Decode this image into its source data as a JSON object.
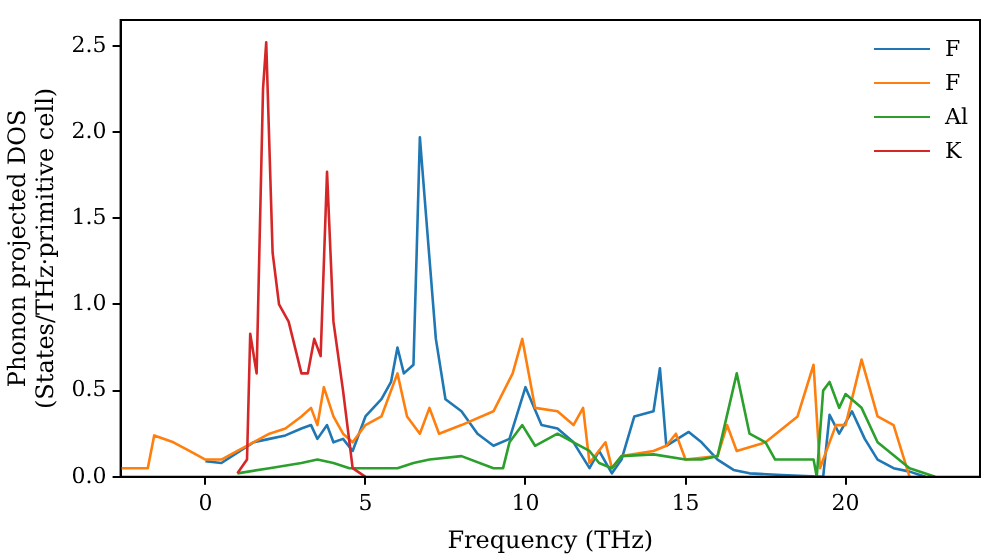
{
  "chart_data": {
    "type": "line",
    "xlabel": "Frequency (THz)",
    "ylabel": "Phonon projected DOS\n(States/THz·primitive cell)",
    "xlim": [
      -2.65,
      24.2
    ],
    "ylim": [
      0,
      2.65
    ],
    "xticks": [
      0,
      5,
      10,
      15,
      20
    ],
    "yticks": [
      {
        "value": 0,
        "label": "0.0"
      },
      {
        "value": 0.5,
        "label": "0.5"
      },
      {
        "value": 1,
        "label": "1.0"
      },
      {
        "value": 1.5,
        "label": "1.5"
      },
      {
        "value": 2,
        "label": "2.0"
      },
      {
        "value": 2.5,
        "label": "2.5"
      }
    ],
    "grid": false,
    "legend": "top right",
    "marker": "none",
    "line_style": "solid",
    "series": [
      {
        "name": "F",
        "color": "#1f77b4",
        "x": [
          0,
          0.5,
          1.0,
          1.5,
          2.0,
          2.5,
          3.0,
          3.3,
          3.5,
          3.8,
          4.0,
          4.3,
          4.6,
          5.0,
          5.5,
          5.8,
          6.0,
          6.2,
          6.5,
          6.6,
          6.7,
          6.9,
          7.2,
          7.5,
          8,
          8.5,
          9,
          9.5,
          10,
          10.5,
          11,
          11.5,
          12,
          12.3,
          12.7,
          13,
          13.4,
          14,
          14.2,
          14.4,
          15.1,
          15.5,
          16,
          16.5,
          17,
          18,
          19.3,
          19.5,
          19.8,
          20.2,
          20.6,
          21.0,
          21.5,
          22,
          22.5
        ],
        "values": [
          0.09,
          0.08,
          0.14,
          0.2,
          0.22,
          0.24,
          0.28,
          0.3,
          0.22,
          0.3,
          0.2,
          0.22,
          0.15,
          0.35,
          0.45,
          0.55,
          0.75,
          0.6,
          0.65,
          1.3,
          1.97,
          1.5,
          0.8,
          0.45,
          0.38,
          0.25,
          0.18,
          0.22,
          0.52,
          0.3,
          0.28,
          0.2,
          0.05,
          0.15,
          0.02,
          0.1,
          0.35,
          0.38,
          0.63,
          0.18,
          0.26,
          0.2,
          0.1,
          0.04,
          0.02,
          0.01,
          0.0,
          0.36,
          0.25,
          0.38,
          0.22,
          0.1,
          0.05,
          0.03,
          0.0
        ]
      },
      {
        "name": "F",
        "color": "#ff7f0e",
        "x": [
          -2.65,
          -1.8,
          -1.6,
          -1.0,
          -0.5,
          0,
          0.5,
          1,
          1.5,
          2,
          2.5,
          3,
          3.3,
          3.5,
          3.7,
          4,
          4.3,
          4.6,
          5,
          5.5,
          6,
          6.3,
          6.7,
          7,
          7.3,
          8,
          9,
          9.6,
          9.9,
          10.3,
          11,
          11.5,
          11.8,
          12,
          12.5,
          12.7,
          13,
          14,
          14.4,
          14.7,
          15,
          16,
          16.3,
          16.6,
          17.5,
          18.5,
          19.0,
          19.2,
          19.7,
          20.0,
          20.5,
          21,
          21.5,
          22
        ],
        "values": [
          0.05,
          0.05,
          0.24,
          0.2,
          0.15,
          0.1,
          0.1,
          0.15,
          0.2,
          0.25,
          0.28,
          0.35,
          0.4,
          0.3,
          0.52,
          0.35,
          0.25,
          0.2,
          0.3,
          0.35,
          0.6,
          0.35,
          0.25,
          0.4,
          0.25,
          0.3,
          0.38,
          0.6,
          0.8,
          0.4,
          0.38,
          0.3,
          0.4,
          0.08,
          0.2,
          0.05,
          0.12,
          0.15,
          0.18,
          0.25,
          0.1,
          0.12,
          0.3,
          0.15,
          0.2,
          0.35,
          0.65,
          0.05,
          0.3,
          0.3,
          0.68,
          0.35,
          0.3,
          0.0
        ]
      },
      {
        "name": "Al",
        "color": "#2ca02c",
        "x": [
          1,
          2,
          3,
          3.5,
          4,
          4.5,
          5,
          6,
          6.5,
          7,
          8,
          9,
          9.3,
          9.5,
          9.9,
          10.3,
          11,
          11.5,
          12,
          12.3,
          12.7,
          13,
          14,
          15,
          15.5,
          16,
          16.6,
          17,
          17.5,
          17.8,
          19.0,
          19.1,
          19.3,
          19.5,
          19.8,
          20,
          20.5,
          21,
          22,
          22.8
        ],
        "values": [
          0.02,
          0.05,
          0.08,
          0.1,
          0.08,
          0.05,
          0.05,
          0.05,
          0.08,
          0.1,
          0.12,
          0.05,
          0.05,
          0.2,
          0.3,
          0.18,
          0.25,
          0.2,
          0.15,
          0.08,
          0.05,
          0.12,
          0.13,
          0.1,
          0.1,
          0.12,
          0.6,
          0.25,
          0.2,
          0.1,
          0.1,
          0.0,
          0.5,
          0.55,
          0.4,
          0.48,
          0.4,
          0.2,
          0.05,
          0.0
        ]
      },
      {
        "name": "K",
        "color": "#d62728",
        "x": [
          1,
          1.3,
          1.4,
          1.6,
          1.8,
          1.9,
          2.1,
          2.3,
          2.6,
          3,
          3.2,
          3.4,
          3.6,
          3.8,
          4.0,
          4.3,
          4.6,
          5
        ],
        "values": [
          0.02,
          0.1,
          0.83,
          0.6,
          2.25,
          2.52,
          1.3,
          1.0,
          0.9,
          0.6,
          0.6,
          0.8,
          0.7,
          1.77,
          0.9,
          0.5,
          0.05,
          0.0
        ]
      }
    ]
  }
}
